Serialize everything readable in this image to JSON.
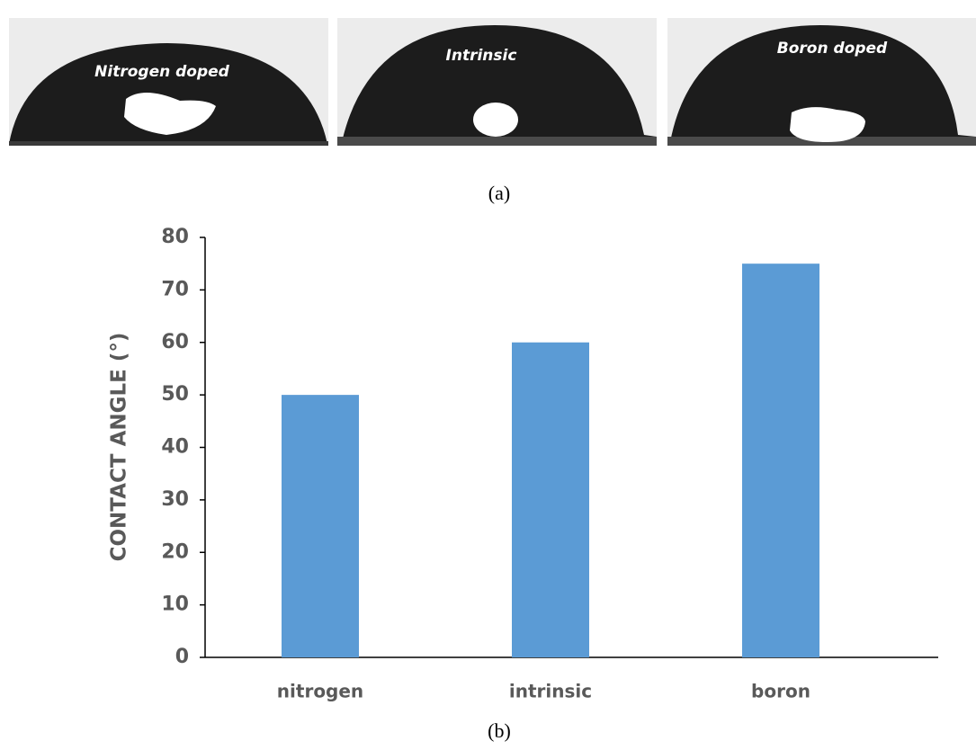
{
  "photos": {
    "labels": [
      "Nitrogen doped",
      "Intrinsic",
      "Boron doped"
    ],
    "caption": "(a)"
  },
  "chart_data": {
    "type": "bar",
    "caption": "(b)",
    "y_label": "CONTACT ANGLE (°)",
    "categories": [
      "nitrogen",
      "intrinsic",
      "boron"
    ],
    "values": [
      50,
      60,
      75
    ],
    "color": "#5b9bd5",
    "ylim": [
      0,
      80
    ],
    "yticks": [
      0,
      10,
      20,
      30,
      40,
      50,
      60,
      70,
      80
    ],
    "grid": false
  }
}
